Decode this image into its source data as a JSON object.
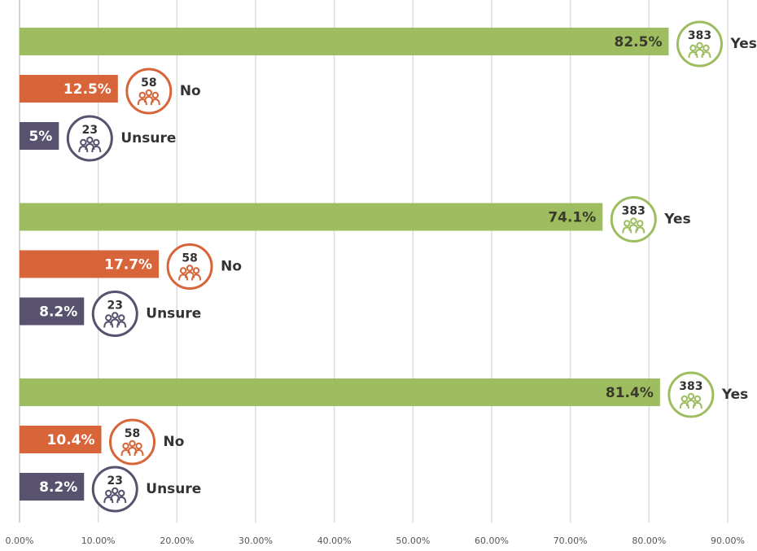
{
  "chart_data": {
    "type": "bar",
    "orientation": "horizontal",
    "categories": [
      null,
      null,
      null
    ],
    "series": [
      {
        "name": "Yes",
        "color": "#9dbd60",
        "label_color": "#3a3a2a",
        "values": [
          82.5,
          74.1,
          81.4
        ],
        "value_labels": [
          "82.5%",
          "74.1%",
          "81.4%"
        ],
        "counts": [
          383,
          383,
          383
        ]
      },
      {
        "name": "No",
        "color": "#d8653a",
        "label_color": "#ffffff",
        "values": [
          12.5,
          17.7,
          10.4
        ],
        "value_labels": [
          "12.5%",
          "17.7%",
          "10.4%"
        ],
        "counts": [
          58,
          58,
          58
        ]
      },
      {
        "name": "Unsure",
        "color": "#58526f",
        "label_color": "#ffffff",
        "values": [
          5,
          8.2,
          8.2
        ],
        "value_labels": [
          "5%",
          "8.2%",
          "8.2%"
        ],
        "counts": [
          23,
          23,
          23
        ]
      }
    ],
    "xlim": [
      0,
      90
    ],
    "xticks": [
      {
        "value": 0,
        "label": "0.00%"
      },
      {
        "value": 10,
        "label": "10.00%"
      },
      {
        "value": 20,
        "label": "20.00%"
      },
      {
        "value": 30,
        "label": "30.00%"
      },
      {
        "value": 40,
        "label": "40.00%"
      },
      {
        "value": 50,
        "label": "50.00%"
      },
      {
        "value": 60,
        "label": "60.00%"
      },
      {
        "value": 70,
        "label": "70.00%"
      },
      {
        "value": 80,
        "label": "80.00%"
      },
      {
        "value": 90,
        "label": "90.00%"
      }
    ],
    "grid": true
  }
}
